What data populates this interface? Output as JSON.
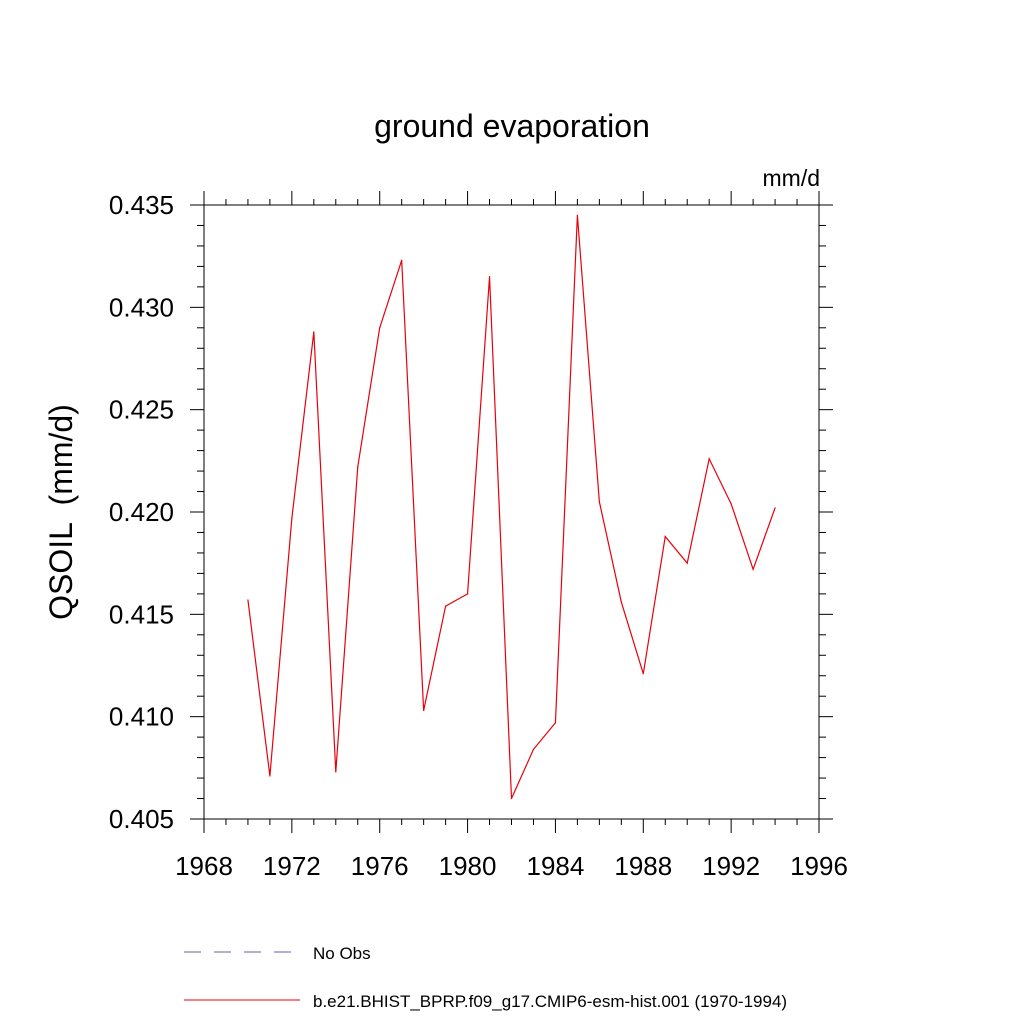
{
  "chart_data": {
    "type": "line",
    "title": "ground evaporation",
    "units": "mm/d",
    "ylabel": "QSOIL  (mm/d)",
    "xlabel": "",
    "xlim": [
      1968,
      1996
    ],
    "ylim": [
      0.405,
      0.435
    ],
    "xticks": [
      1968,
      1972,
      1976,
      1980,
      1984,
      1988,
      1992,
      1996
    ],
    "xtick_labels": [
      "1968",
      "1972",
      "1976",
      "1980",
      "1984",
      "1988",
      "1992",
      "1996"
    ],
    "yticks": [
      0.405,
      0.41,
      0.415,
      0.42,
      0.425,
      0.43,
      0.435
    ],
    "ytick_labels": [
      "0.405",
      "0.410",
      "0.415",
      "0.420",
      "0.425",
      "0.430",
      "0.435"
    ],
    "grid": false,
    "legend_position": "bottom",
    "series": [
      {
        "name": "b.e21.BHIST_BPRP.f09_g17.CMIP6-esm-hist.001 (1970-1994)",
        "color": "#e8000b",
        "style": "solid",
        "x": [
          1970,
          1971,
          1972,
          1973,
          1974,
          1975,
          1976,
          1977,
          1978,
          1979,
          1980,
          1981,
          1982,
          1983,
          1984,
          1985,
          1986,
          1987,
          1988,
          1989,
          1990,
          1991,
          1992,
          1993,
          1994
        ],
        "y": [
          0.4157,
          0.4071,
          0.4197,
          0.4288,
          0.4073,
          0.4222,
          0.429,
          0.4323,
          0.4103,
          0.4154,
          0.416,
          0.4315,
          0.406,
          0.4084,
          0.4097,
          0.4345,
          0.4205,
          0.4156,
          0.4121,
          0.4188,
          0.4175,
          0.4226,
          0.4204,
          0.4172,
          0.4202
        ]
      }
    ],
    "legend": [
      {
        "label": "No Obs",
        "color": "#6b5fb0",
        "style": "dashed"
      },
      {
        "label": "b.e21.BHIST_BPRP.f09_g17.CMIP6-esm-hist.001 (1970-1994)",
        "color": "#e8000b",
        "style": "solid"
      }
    ]
  }
}
